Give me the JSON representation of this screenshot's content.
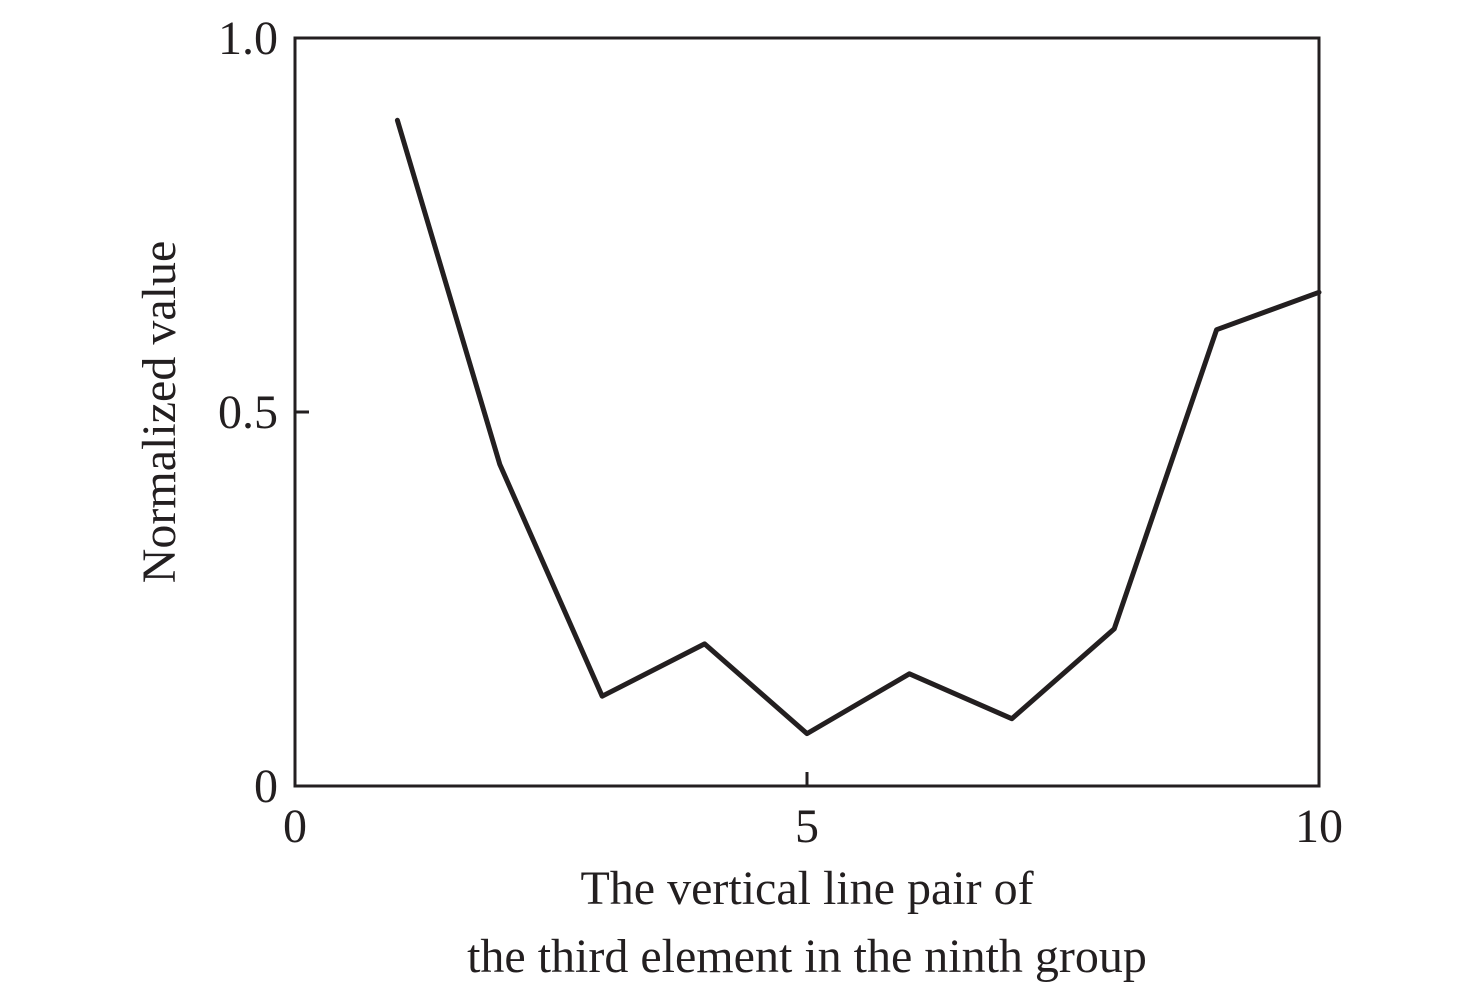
{
  "chart_data": {
    "type": "line",
    "title": "",
    "xlabel_lines": [
      "The vertical line pair of",
      "the third element in the ninth group"
    ],
    "ylabel": "Normalized value",
    "xlim": [
      0,
      10
    ],
    "ylim": [
      0,
      1.0
    ],
    "x_ticks": [
      {
        "value": 0,
        "label": "0"
      },
      {
        "value": 5,
        "label": "5"
      },
      {
        "value": 10,
        "label": "10"
      }
    ],
    "y_ticks": [
      {
        "value": 0,
        "label": "0"
      },
      {
        "value": 0.5,
        "label": "0.5"
      },
      {
        "value": 1.0,
        "label": "1.0"
      }
    ],
    "grid": false,
    "series": [
      {
        "x": [
          1,
          2,
          3,
          4,
          5,
          6,
          7,
          8,
          9,
          10
        ],
        "y": [
          0.89,
          0.43,
          0.12,
          0.19,
          0.07,
          0.15,
          0.09,
          0.21,
          0.61,
          0.66
        ],
        "color": "#231f20"
      }
    ]
  }
}
